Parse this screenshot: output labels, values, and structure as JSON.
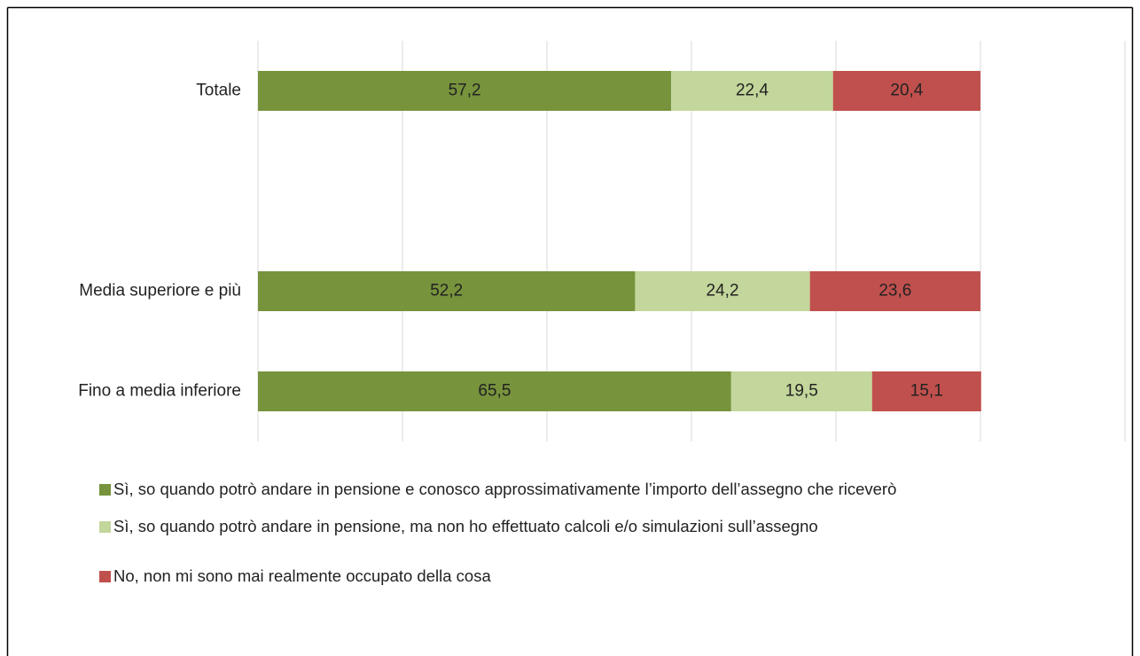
{
  "chart_data": {
    "type": "stacked-barh",
    "categories": [
      "Totale",
      null,
      "Media superiore e più",
      "Fino a media inferiore"
    ],
    "series": [
      {
        "name": "Sì, so quando potrò andare in pensione e conosco approssimativamente l’importo dell’assegno che riceverò",
        "color": "#77933c",
        "values": [
          57.2,
          null,
          52.2,
          65.5
        ],
        "value_labels": [
          "57,2",
          null,
          "52,2",
          "65,5"
        ]
      },
      {
        "name": "Sì, so quando potrò andare in pensione, ma non ho effettuato calcoli e/o simulazioni sull’assegno",
        "color": "#c3d69b",
        "values": [
          22.4,
          null,
          24.2,
          19.5
        ],
        "value_labels": [
          "22,4",
          null,
          "24,2",
          "19,5"
        ]
      },
      {
        "name": "No, non mi sono mai realmente occupato della cosa",
        "color": "#c0504d",
        "values": [
          20.4,
          null,
          23.6,
          15.1
        ],
        "value_labels": [
          "20,4",
          null,
          "23,6",
          "15,1"
        ]
      }
    ],
    "xlim": [
      0,
      120
    ],
    "xticks": [
      0,
      20,
      40,
      60,
      80,
      100,
      120
    ],
    "grid": true,
    "legend": "bottom"
  }
}
